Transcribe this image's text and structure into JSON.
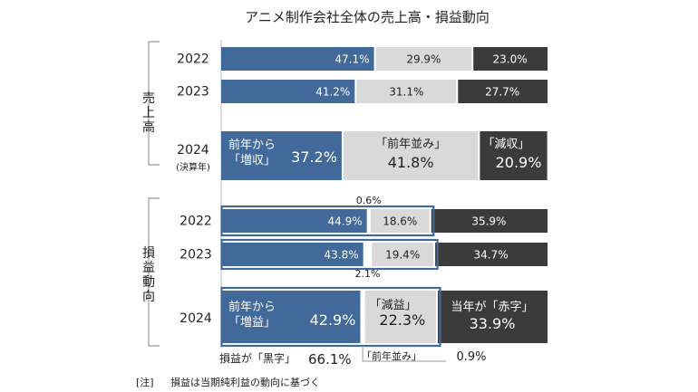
{
  "chart_data": {
    "type": "bar",
    "orientation": "horizontal",
    "stacked": "100%",
    "title": "アニメ制作会社全体の売上高・損益動向",
    "xlim": [
      0,
      100
    ],
    "groups": [
      {
        "label": "売上高",
        "rows": [
          {
            "year": "2022",
            "sub": "",
            "segments": [
              {
                "value": 47.1,
                "label": "47.1%"
              },
              {
                "value": 29.9,
                "label": "29.9%"
              },
              {
                "value": 23.0,
                "label": "23.0%"
              }
            ]
          },
          {
            "year": "2023",
            "sub": "",
            "segments": [
              {
                "value": 41.2,
                "label": "41.2%"
              },
              {
                "value": 31.1,
                "label": "31.1%"
              },
              {
                "value": 27.7,
                "label": "27.7%"
              }
            ]
          },
          {
            "year": "2024",
            "sub": "(決算年)",
            "segments": [
              {
                "value": 37.2,
                "label": "37.2%",
                "note": "前年から\n「増収」"
              },
              {
                "value": 41.8,
                "label": "41.8%",
                "note": "「前年並み」"
              },
              {
                "value": 20.9,
                "label": "20.9%",
                "note": "「減収」"
              }
            ]
          }
        ]
      },
      {
        "label": "損益動向",
        "rows": [
          {
            "year": "2022",
            "sub": "",
            "segments": [
              {
                "value": 44.9,
                "label": "44.9%"
              },
              {
                "value": 0.6,
                "label": "0.6%"
              },
              {
                "value": 18.6,
                "label": "18.6%"
              },
              {
                "value": 35.9,
                "label": "35.9%"
              }
            ]
          },
          {
            "year": "2023",
            "sub": "",
            "segments": [
              {
                "value": 43.8,
                "label": "43.8%"
              },
              {
                "value": 2.1,
                "label": "2.1%"
              },
              {
                "value": 19.4,
                "label": "19.4%"
              },
              {
                "value": 34.7,
                "label": "34.7%"
              }
            ]
          },
          {
            "year": "2024",
            "sub": "",
            "segments": [
              {
                "value": 42.9,
                "label": "42.9%",
                "note": "前年から\n「増益」"
              },
              {
                "value": 0.9,
                "label": "0.9%",
                "note": "「前年並み」"
              },
              {
                "value": 22.3,
                "label": "22.3%",
                "note": "「減益」"
              },
              {
                "value": 33.9,
                "label": "33.9%",
                "note": "当年が「赤字」"
              }
            ]
          }
        ]
      }
    ],
    "annotations": {
      "black_profit_label": "損益が「黒字」",
      "black_profit_value": "66.1%",
      "note_label": "[注]",
      "note_text": "損益は当期純利益の動向に基づく"
    },
    "colors": {
      "blue": "#41699a",
      "light": "#d9d9d9",
      "dark": "#3b3b3b",
      "white_gap": "#ffffff",
      "highlight_outline": "#41699a"
    }
  }
}
